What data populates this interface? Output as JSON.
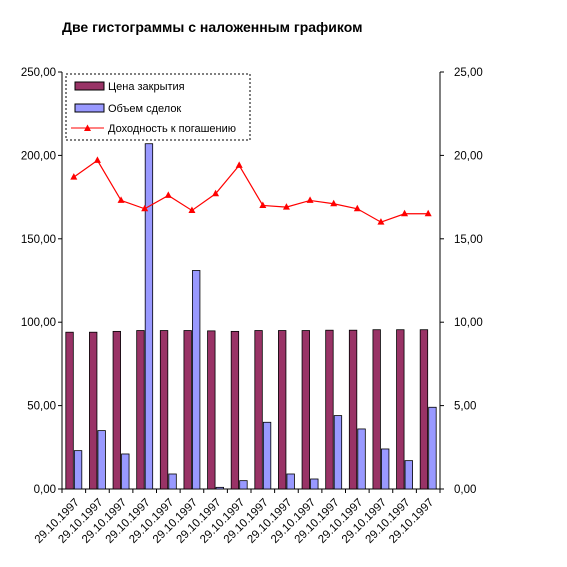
{
  "chart_data": {
    "type": "bar",
    "title": "Две гистограммы с наложенным графиком",
    "categories": [
      "29.10.1997",
      "29.10.1997",
      "29.10.1997",
      "29.10.1997",
      "29.10.1997",
      "29.10.1997",
      "29.10.1997",
      "29.10.1997",
      "29.10.1997",
      "29.10.1997",
      "29.10.1997",
      "29.10.1997",
      "29.10.1997",
      "29.10.1997",
      "29.10.1997",
      "29.10.1997"
    ],
    "series": [
      {
        "name": "Цена закрытия",
        "type": "bar",
        "axis": "left",
        "color": "#993366",
        "values": [
          94.0,
          94.0,
          94.5,
          95.0,
          95.0,
          95.0,
          94.8,
          94.5,
          95.0,
          95.0,
          95.0,
          95.2,
          95.2,
          95.5,
          95.5,
          95.5
        ]
      },
      {
        "name": "Объем сделок",
        "type": "bar",
        "axis": "left",
        "color": "#9999ff",
        "values": [
          23.0,
          35.0,
          21.0,
          207.0,
          9.0,
          131.0,
          1.0,
          5.0,
          40.0,
          9.0,
          6.0,
          44.0,
          36.0,
          24.0,
          17.0,
          49.0
        ]
      },
      {
        "name": "Доходность к погашению",
        "type": "line",
        "axis": "right",
        "color": "#ff0000",
        "marker": "triangle",
        "values": [
          18.7,
          19.7,
          17.3,
          16.8,
          17.6,
          16.7,
          17.7,
          19.4,
          17.0,
          16.9,
          17.3,
          17.1,
          16.8,
          16.0,
          16.5,
          16.5
        ]
      }
    ],
    "left_axis": {
      "ylim": [
        0,
        250
      ],
      "ticks": [
        "0,00",
        "50,00",
        "100,00",
        "150,00",
        "200,00",
        "250,00"
      ]
    },
    "right_axis": {
      "ylim": [
        0,
        25
      ],
      "ticks": [
        "0,00",
        "5,00",
        "10,00",
        "15,00",
        "20,00",
        "25,00"
      ]
    },
    "grid": false,
    "legend": "top-left"
  }
}
